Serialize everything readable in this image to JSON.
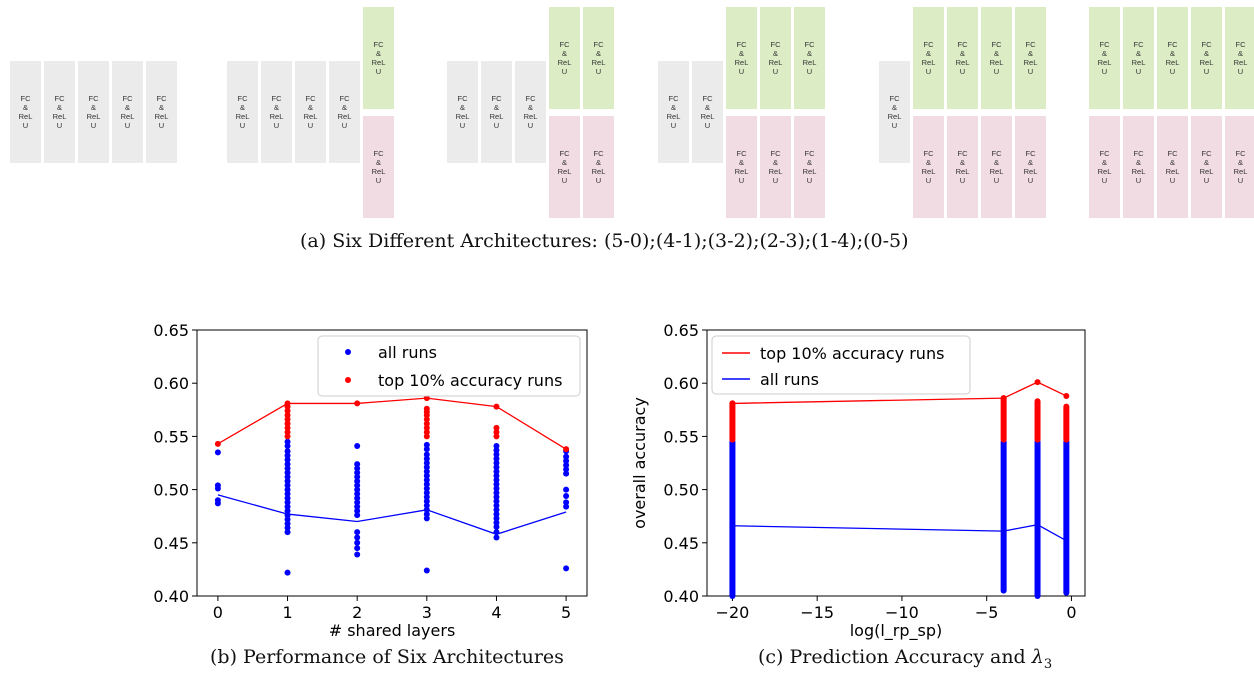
{
  "block_label": "FC\n&\nReL\nU",
  "architectures": [
    {
      "shared": 5,
      "specific": 0
    },
    {
      "shared": 4,
      "specific": 1
    },
    {
      "shared": 3,
      "specific": 2
    },
    {
      "shared": 2,
      "specific": 3
    },
    {
      "shared": 1,
      "specific": 4
    },
    {
      "shared": 0,
      "specific": 5
    }
  ],
  "captions": {
    "a": "(a) Six Different Architectures: (5-0);(4-1);(3-2);(2-3);(1-4);(0-5)",
    "b": "(b) Performance of Six Architectures",
    "c_prefix": "(c) Prediction Accuracy and ",
    "c_symbol": "λ",
    "c_sub": "3"
  },
  "colors": {
    "blue": "#0000ff",
    "red": "#ff0000",
    "shared": "#ebebeb",
    "green": "#dcedc5",
    "pink": "#f2dce3"
  },
  "chart_data": [
    {
      "type": "scatter",
      "xlabel": "# shared layers",
      "ylabel": "",
      "xlim": [
        -0.3,
        5.3
      ],
      "ylim": [
        0.4,
        0.65
      ],
      "xticks": [
        "0",
        "1",
        "2",
        "3",
        "4",
        "5"
      ],
      "yticks": [
        "0.40",
        "0.45",
        "0.50",
        "0.55",
        "0.60",
        "0.65"
      ],
      "legend": [
        "all runs",
        "top 10% accuracy runs"
      ],
      "legend_position": "top-right",
      "blue_points": [
        [
          0,
          0.535
        ],
        [
          0,
          0.504
        ],
        [
          0,
          0.501
        ],
        [
          0,
          0.49
        ],
        [
          0,
          0.487
        ],
        [
          1,
          0.545
        ],
        [
          1,
          0.541
        ],
        [
          1,
          0.536
        ],
        [
          1,
          0.532
        ],
        [
          1,
          0.528
        ],
        [
          1,
          0.524
        ],
        [
          1,
          0.52
        ],
        [
          1,
          0.516
        ],
        [
          1,
          0.512
        ],
        [
          1,
          0.508
        ],
        [
          1,
          0.504
        ],
        [
          1,
          0.5
        ],
        [
          1,
          0.496
        ],
        [
          1,
          0.492
        ],
        [
          1,
          0.488
        ],
        [
          1,
          0.484
        ],
        [
          1,
          0.48
        ],
        [
          1,
          0.476
        ],
        [
          1,
          0.472
        ],
        [
          1,
          0.468
        ],
        [
          1,
          0.464
        ],
        [
          1,
          0.46
        ],
        [
          1,
          0.422
        ],
        [
          2,
          0.541
        ],
        [
          2,
          0.524
        ],
        [
          2,
          0.52
        ],
        [
          2,
          0.516
        ],
        [
          2,
          0.512
        ],
        [
          2,
          0.508
        ],
        [
          2,
          0.504
        ],
        [
          2,
          0.5
        ],
        [
          2,
          0.496
        ],
        [
          2,
          0.492
        ],
        [
          2,
          0.488
        ],
        [
          2,
          0.484
        ],
        [
          2,
          0.48
        ],
        [
          2,
          0.476
        ],
        [
          2,
          0.46
        ],
        [
          2,
          0.455
        ],
        [
          2,
          0.45
        ],
        [
          2,
          0.445
        ],
        [
          2,
          0.439
        ],
        [
          3,
          0.542
        ],
        [
          3,
          0.538
        ],
        [
          3,
          0.533
        ],
        [
          3,
          0.529
        ],
        [
          3,
          0.525
        ],
        [
          3,
          0.521
        ],
        [
          3,
          0.517
        ],
        [
          3,
          0.513
        ],
        [
          3,
          0.509
        ],
        [
          3,
          0.505
        ],
        [
          3,
          0.501
        ],
        [
          3,
          0.497
        ],
        [
          3,
          0.493
        ],
        [
          3,
          0.489
        ],
        [
          3,
          0.485
        ],
        [
          3,
          0.481
        ],
        [
          3,
          0.477
        ],
        [
          3,
          0.473
        ],
        [
          3,
          0.424
        ],
        [
          4,
          0.541
        ],
        [
          4,
          0.537
        ],
        [
          4,
          0.533
        ],
        [
          4,
          0.529
        ],
        [
          4,
          0.525
        ],
        [
          4,
          0.521
        ],
        [
          4,
          0.517
        ],
        [
          4,
          0.513
        ],
        [
          4,
          0.509
        ],
        [
          4,
          0.505
        ],
        [
          4,
          0.501
        ],
        [
          4,
          0.497
        ],
        [
          4,
          0.493
        ],
        [
          4,
          0.489
        ],
        [
          4,
          0.485
        ],
        [
          4,
          0.481
        ],
        [
          4,
          0.477
        ],
        [
          4,
          0.473
        ],
        [
          4,
          0.469
        ],
        [
          4,
          0.465
        ],
        [
          4,
          0.46
        ],
        [
          4,
          0.455
        ],
        [
          5,
          0.536
        ],
        [
          5,
          0.531
        ],
        [
          5,
          0.527
        ],
        [
          5,
          0.523
        ],
        [
          5,
          0.519
        ],
        [
          5,
          0.515
        ],
        [
          5,
          0.5
        ],
        [
          5,
          0.494
        ],
        [
          5,
          0.488
        ],
        [
          5,
          0.484
        ],
        [
          5,
          0.426
        ]
      ],
      "red_points": [
        [
          0,
          0.543
        ],
        [
          1,
          0.581
        ],
        [
          1,
          0.578
        ],
        [
          1,
          0.574
        ],
        [
          1,
          0.57
        ],
        [
          1,
          0.566
        ],
        [
          1,
          0.562
        ],
        [
          1,
          0.558
        ],
        [
          1,
          0.554
        ],
        [
          1,
          0.55
        ],
        [
          2,
          0.581
        ],
        [
          3,
          0.586
        ],
        [
          3,
          0.576
        ],
        [
          3,
          0.573
        ],
        [
          3,
          0.57
        ],
        [
          3,
          0.566
        ],
        [
          3,
          0.562
        ],
        [
          3,
          0.558
        ],
        [
          3,
          0.554
        ],
        [
          3,
          0.55
        ],
        [
          4,
          0.578
        ],
        [
          4,
          0.558
        ],
        [
          4,
          0.554
        ],
        [
          4,
          0.55
        ],
        [
          5,
          0.538
        ]
      ],
      "red_line": [
        [
          0,
          0.543
        ],
        [
          1,
          0.581
        ],
        [
          2,
          0.581
        ],
        [
          3,
          0.586
        ],
        [
          4,
          0.578
        ],
        [
          5,
          0.538
        ]
      ],
      "blue_line": [
        [
          0,
          0.495
        ],
        [
          1,
          0.477
        ],
        [
          2,
          0.47
        ],
        [
          3,
          0.481
        ],
        [
          4,
          0.458
        ],
        [
          5,
          0.479
        ]
      ]
    },
    {
      "type": "scatter",
      "xlabel": "log(l_rp_sp)",
      "ylabel": "overall accuracy",
      "xlim": [
        -21.5,
        0.8
      ],
      "ylim": [
        0.4,
        0.65
      ],
      "xticks": [
        -20,
        -15,
        -10,
        -5,
        0
      ],
      "xtick_labels": [
        "−20",
        "−15",
        "−10",
        "−5",
        "0"
      ],
      "yticks": [
        "0.40",
        "0.45",
        "0.50",
        "0.55",
        "0.60",
        "0.65"
      ],
      "legend": [
        "top 10% accuracy runs",
        "all runs"
      ],
      "legend_position": "top-left",
      "columns": [
        {
          "x": -20,
          "blue": [
            0.4,
            0.545
          ],
          "red": [
            0.547,
            0.581
          ]
        },
        {
          "x": -4,
          "blue": [
            0.405,
            0.545
          ],
          "red": [
            0.547,
            0.586
          ]
        },
        {
          "x": -2,
          "blue": [
            0.4,
            0.545
          ],
          "red": [
            0.547,
            0.583
          ]
        },
        {
          "x": -0.3,
          "blue": [
            0.403,
            0.545
          ],
          "red": [
            0.547,
            0.578
          ]
        }
      ],
      "red_top_points": [
        [
          -20,
          0.581
        ],
        [
          -4,
          0.586
        ],
        [
          -2,
          0.601
        ],
        [
          -0.3,
          0.588
        ]
      ],
      "red_line": [
        [
          -20,
          0.581
        ],
        [
          -4,
          0.586
        ],
        [
          -2,
          0.601
        ],
        [
          -0.3,
          0.588
        ]
      ],
      "blue_line": [
        [
          -20,
          0.466
        ],
        [
          -4,
          0.461
        ],
        [
          -2,
          0.467
        ],
        [
          -0.3,
          0.452
        ]
      ]
    }
  ]
}
